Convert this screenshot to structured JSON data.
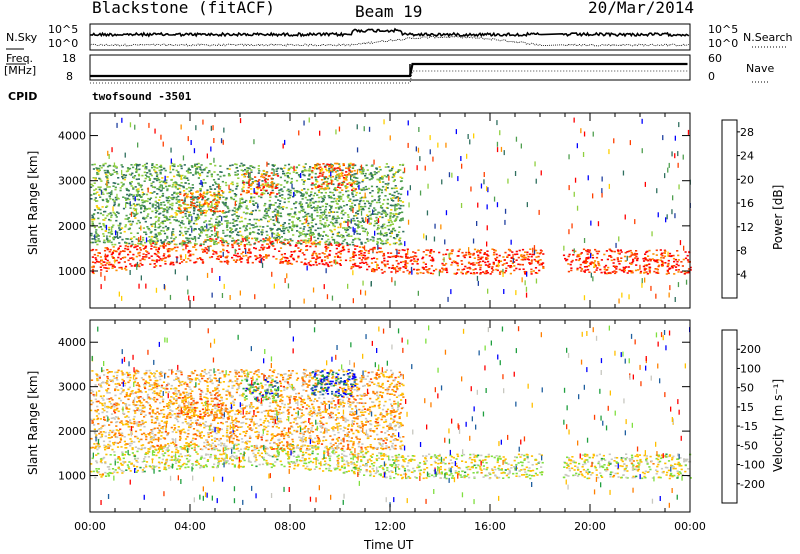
{
  "header": {
    "station": "Blackstone (fitACF)",
    "beam": "Beam 19",
    "date": "20/Mar/2014"
  },
  "info_panels": {
    "nsky_label": "N.Sky",
    "nsearch_label": "N.Search",
    "noise_ticks": [
      "10^5",
      "10^0"
    ],
    "freq_label_top": "Freq.",
    "freq_label_bottom": "[MHz]",
    "freq_ticks": [
      "18",
      "8"
    ],
    "nave_label": "Nave",
    "nave_ticks": [
      "60",
      "0"
    ],
    "cpid_label": "CPID",
    "cpid_text": "twofsound -3501"
  },
  "chart_data": [
    {
      "type": "heatmap",
      "title": "",
      "xlabel": "Time UT",
      "ylabel": "Slant Range [km]",
      "x_ticks": [
        "00:00",
        "04:00",
        "08:00",
        "12:00",
        "16:00",
        "20:00",
        "00:00"
      ],
      "x_range_hours": [
        0,
        24
      ],
      "y_ticks": [
        1000,
        2000,
        3000,
        4000
      ],
      "ylim": [
        180,
        4500
      ],
      "colorbar_label": "Power [dB]",
      "colorbar_ticks": [
        4,
        8,
        12,
        16,
        20,
        24,
        28
      ],
      "colorbar_range": [
        0,
        30
      ],
      "colors": [
        "#0000ff",
        "#1f3fa0",
        "#2f6f5f",
        "#4f9f4f",
        "#8fcf3f",
        "#ffcf00",
        "#ff8f00",
        "#ff3f00",
        "#ff0000"
      ],
      "data_gaps_hours": [
        [
          18.1,
          18.9
        ]
      ],
      "echo_bands": [
        {
          "name": "ground_scatter_low",
          "start_h": 0.0,
          "end_h": 24.0,
          "range_km": [
            950,
            1500
          ],
          "value": 26
        },
        {
          "name": "ionospheric_upper",
          "start_h": 0.0,
          "end_h": 12.5,
          "range_km": [
            1600,
            3400
          ],
          "value": 12
        },
        {
          "name": "strong_patch_1",
          "start_h": 3.5,
          "end_h": 5.3,
          "range_km": [
            2300,
            2800
          ],
          "value": 22
        },
        {
          "name": "strong_patch_2",
          "start_h": 6.0,
          "end_h": 7.5,
          "range_km": [
            2700,
            3200
          ],
          "value": 24
        },
        {
          "name": "strong_patch_3",
          "start_h": 8.8,
          "end_h": 10.6,
          "range_km": [
            2800,
            3400
          ],
          "value": 24
        }
      ]
    },
    {
      "type": "heatmap",
      "title": "",
      "xlabel": "Time UT",
      "ylabel": "Slant Range [km]",
      "x_ticks": [
        "00:00",
        "04:00",
        "08:00",
        "12:00",
        "16:00",
        "20:00",
        "00:00"
      ],
      "x_range_hours": [
        0,
        24
      ],
      "y_ticks": [
        1000,
        2000,
        3000,
        4000
      ],
      "ylim": [
        180,
        4500
      ],
      "colorbar_label": "Velocity [m s⁻¹]",
      "colorbar_ticks": [
        200,
        100,
        50,
        15,
        -15,
        -50,
        -100,
        -200
      ],
      "colorbar_range": [
        -250,
        250
      ],
      "colors": [
        "#ff0000",
        "#ff3f00",
        "#ff7f00",
        "#ffbf00",
        "#c8c8c0",
        "#7fdf3f",
        "#1f9f3f",
        "#1f5f9f",
        "#0000ff"
      ],
      "data_gaps_hours": [
        [
          18.1,
          18.9
        ]
      ],
      "echo_bands": [
        {
          "name": "ground_scatter_low",
          "start_h": 0.0,
          "end_h": 24.0,
          "range_km": [
            950,
            1500
          ],
          "value": 0
        },
        {
          "name": "ionospheric_upper",
          "start_h": 0.0,
          "end_h": 12.5,
          "range_km": [
            1600,
            3400
          ],
          "value": -60
        },
        {
          "name": "strong_patch_1",
          "start_h": 3.5,
          "end_h": 5.3,
          "range_km": [
            2300,
            2800
          ],
          "value": -110
        },
        {
          "name": "strong_patch_2",
          "start_h": 6.0,
          "end_h": 7.5,
          "range_km": [
            2700,
            3200
          ],
          "value": 120
        },
        {
          "name": "strong_patch_3",
          "start_h": 8.8,
          "end_h": 10.6,
          "range_km": [
            2800,
            3400
          ],
          "value": 180
        }
      ]
    }
  ]
}
